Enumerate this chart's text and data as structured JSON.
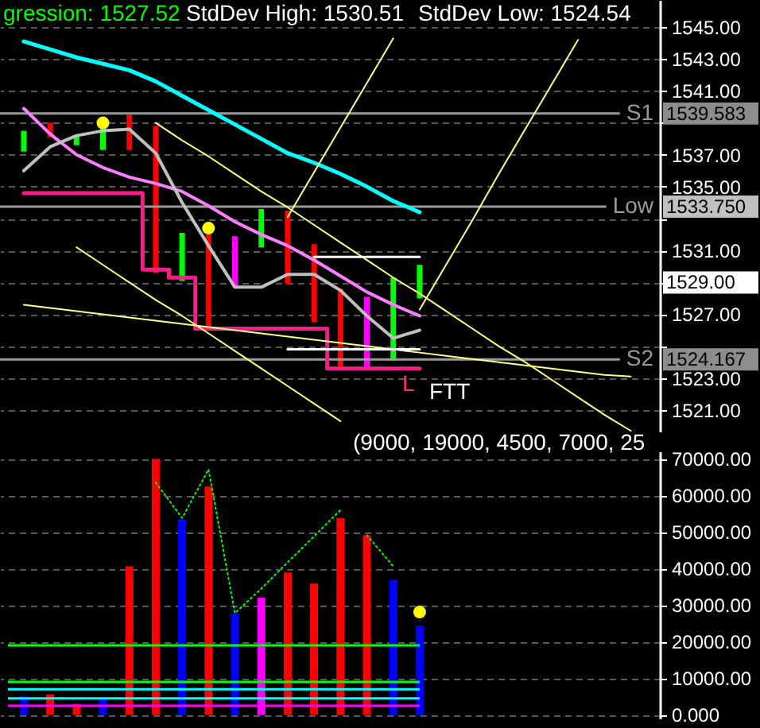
{
  "chart_data": [
    {
      "type": "bar",
      "grid": "y",
      "tick_labels": "y",
      "categories": [
        null,
        null,
        null,
        null,
        null,
        null,
        null,
        null,
        null,
        null,
        null,
        null,
        null,
        null,
        null,
        null,
        null,
        null,
        null,
        null,
        null,
        null,
        null,
        null
      ],
      "ylim": [
        1519.6,
        1546.7
      ],
      "yticks": [
        {
          "value": 1521,
          "label": "1521.00"
        },
        {
          "value": 1523,
          "label": "1523.00"
        },
        {
          "value": 1525,
          "label": null
        },
        {
          "value": 1527,
          "label": "1527.00"
        },
        {
          "value": 1529,
          "label": null
        },
        {
          "value": 1531,
          "label": "1531.00"
        },
        {
          "value": 1533,
          "label": null
        },
        {
          "value": 1535,
          "label": "1535.00"
        },
        {
          "value": 1537,
          "label": "1537.00"
        },
        {
          "value": 1539,
          "label": null
        },
        {
          "value": 1541,
          "label": "1541.00"
        },
        {
          "value": 1543,
          "label": "1543.00"
        },
        {
          "value": 1545,
          "label": "1545.00"
        }
      ],
      "series": [
        {
          "colors": [
            "#00ff00",
            "#ff0000",
            "#00ff00",
            "#00ff00",
            "#ff0000",
            "#ff0000",
            "#00ff00",
            "#ff0000",
            "#ff00ff",
            "#00ff00",
            "#ff0000",
            "#ff0000",
            "#ff0000",
            "#ff00ff",
            "#00ff00",
            "#00ff00",
            null,
            null,
            null,
            null,
            null,
            null,
            null,
            null
          ],
          "base": [
            1537.2,
            1538.1,
            1537.6,
            1537.3,
            1537.3,
            1529.6,
            1529.1,
            1526.0,
            1528.7,
            1531.2,
            1528.9,
            1526.5,
            1523.5,
            1523.5,
            1524.1,
            1528.0,
            null,
            null,
            null,
            null,
            null,
            null,
            null,
            null
          ],
          "values": [
            1.3,
            0.9,
            0.6,
            1.4,
            2.2,
            9.2,
            3.0,
            6.0,
            3.2,
            2.4,
            4.6,
            4.9,
            5.1,
            4.6,
            5.2,
            2.1,
            null,
            null,
            null,
            null,
            null,
            null,
            null,
            null
          ]
        },
        {
          "type": "line",
          "color": "#00ffff",
          "values": [
            1544.1,
            1543.6,
            1543.1,
            1542.7,
            1542.3,
            1541.6,
            1540.7,
            1539.8,
            1538.9,
            1538.0,
            1537.1,
            1536.5,
            1535.8,
            1535.0,
            1534.1,
            1533.4,
            null,
            null,
            null,
            null,
            null,
            null,
            null,
            null
          ]
        },
        {
          "type": "line",
          "color": "#ff80ff",
          "values": [
            1539.9,
            1538.3,
            1537.0,
            1536.2,
            1535.6,
            1535.2,
            1534.7,
            1533.8,
            1532.8,
            1532.0,
            1531.3,
            1530.4,
            1529.4,
            1528.4,
            1527.6,
            1526.9,
            null,
            null,
            null,
            null,
            null,
            null,
            null,
            null
          ]
        },
        {
          "type": "line",
          "color": "#c0c0c0",
          "values": [
            1536.0,
            1537.5,
            1538.2,
            1538.5,
            1538.6,
            1537.1,
            1534.0,
            1531.3,
            1528.7,
            1528.7,
            1529.5,
            1529.5,
            1528.5,
            1526.9,
            1525.5,
            1526.0,
            null,
            null,
            null,
            null,
            null,
            null,
            null,
            null
          ]
        },
        {
          "type": "step",
          "color": "#ff1a8c",
          "values": [
            1534.6,
            1534.6,
            1534.6,
            1534.6,
            1534.6,
            1529.8,
            1529.3,
            1526.1,
            1526.1,
            1526.1,
            1526.1,
            1526.1,
            1523.6,
            1523.6,
            1523.6,
            1523.6,
            null,
            null,
            null,
            null,
            null,
            null,
            null,
            null
          ]
        },
        {
          "type": "line",
          "color": "#ffff80",
          "values": [
            null,
            null,
            null,
            null,
            null,
            1539.0,
            1537.9,
            1536.9,
            1535.8,
            1534.7,
            1533.7,
            1532.6,
            1531.5,
            1530.4,
            1529.3,
            1528.3,
            1527.2,
            1526.1,
            1525.0,
            1524.0,
            1522.9,
            1521.8,
            1520.7,
            1519.7
          ]
        },
        {
          "type": "line",
          "color": "#ffff80",
          "values": [
            null,
            null,
            1531.2,
            1530.1,
            1529.0,
            1527.9,
            1526.9,
            1525.8,
            1524.7,
            1523.6,
            1522.5,
            1521.4,
            1520.3,
            null,
            null,
            null,
            null,
            null,
            null,
            null,
            null,
            null,
            null,
            null
          ]
        },
        {
          "type": "line",
          "color": "#ffff80",
          "values": [
            1527.6,
            1527.4,
            1527.2,
            1527.0,
            1526.8,
            1526.6,
            1526.4,
            1526.2,
            1526.0,
            1525.8,
            1525.6,
            1525.4,
            1525.2,
            1525.0,
            1524.8,
            1524.6,
            1524.4,
            1524.2,
            1524.0,
            1523.8,
            1523.6,
            1523.4,
            1523.2,
            1523.1
          ]
        },
        {
          "type": "line",
          "color": "#ffff80",
          "values": [
            null,
            null,
            null,
            null,
            null,
            null,
            null,
            null,
            null,
            null,
            1533.1,
            1535.9,
            1538.7,
            1541.5,
            1544.3,
            null,
            null,
            null,
            null,
            null,
            null,
            null,
            null,
            null
          ]
        },
        {
          "type": "line",
          "color": "#ffff80",
          "values": [
            null,
            null,
            null,
            null,
            null,
            null,
            null,
            null,
            null,
            null,
            null,
            null,
            null,
            null,
            null,
            1527.3,
            1530.1,
            1532.9,
            1535.8,
            1538.6,
            1541.4,
            1544.2,
            null,
            null
          ]
        },
        {
          "type": "line",
          "color": "#ffffff",
          "values": [
            null,
            null,
            null,
            null,
            null,
            null,
            null,
            null,
            null,
            null,
            null,
            1530.6,
            1530.6,
            1530.6,
            1530.6,
            1530.6,
            null,
            null,
            null,
            null,
            null,
            null,
            null,
            null
          ]
        },
        {
          "type": "line",
          "color": "#ffffff",
          "values": [
            null,
            null,
            null,
            null,
            null,
            null,
            null,
            null,
            null,
            null,
            1524.8,
            1524.8,
            1524.8,
            1524.8,
            1524.8,
            1524.8,
            null,
            null,
            null,
            null,
            null,
            null,
            null,
            null
          ]
        },
        {
          "type": "scatter",
          "color": "#ffff00",
          "values": [
            null,
            null,
            null,
            1539.0,
            null,
            null,
            null,
            1532.4,
            null,
            null,
            null,
            null,
            null,
            null,
            null,
            null,
            null,
            null,
            null,
            null,
            null,
            null,
            null,
            null
          ]
        }
      ],
      "ref_lines": [
        {
          "axis": "y",
          "value": 1539.583,
          "label": "S1",
          "color": "#9a9a9a"
        },
        {
          "axis": "y",
          "value": 1533.75,
          "label": "Low",
          "color": "#9a9a9a"
        },
        {
          "axis": "y",
          "value": 1524.167,
          "label": "S2",
          "color": "#9a9a9a"
        }
      ],
      "annotations": [
        "gression: 1527.52",
        "StdDev High: 1530.51",
        "StdDev Low: 1524.54",
        "L",
        "FTT",
        "1539.583",
        "1533.750",
        "1529.00",
        "1524.167"
      ]
    },
    {
      "type": "bar",
      "grid": "y",
      "tick_labels": "y",
      "categories": [
        null,
        null,
        null,
        null,
        null,
        null,
        null,
        null,
        null,
        null,
        null,
        null,
        null,
        null,
        null,
        null,
        null,
        null,
        null,
        null,
        null,
        null,
        null,
        null
      ],
      "ylim": [
        -1000,
        72000
      ],
      "yticks": [
        {
          "value": 0,
          "label": "0.000"
        },
        {
          "value": 10000,
          "label": "10000.00"
        },
        {
          "value": 20000,
          "label": "20000.00"
        },
        {
          "value": 30000,
          "label": "30000.00"
        },
        {
          "value": 40000,
          "label": "40000.00"
        },
        {
          "value": 50000,
          "label": "50000.00"
        },
        {
          "value": 60000,
          "label": "60000.00"
        },
        {
          "value": 70000,
          "label": "70000.00"
        }
      ],
      "series": [
        {
          "colors": [
            "#0000ff",
            "#ff0000",
            "#ff0000",
            "#0000ff",
            "#ff0000",
            "#ff0000",
            "#0000ff",
            "#ff0000",
            "#0000ff",
            "#ff00ff",
            "#ff0000",
            "#ff0000",
            "#ff0000",
            "#ff0000",
            "#0000ff",
            "#0000ff",
            null,
            null,
            null,
            null,
            null,
            null,
            null,
            null
          ],
          "values": [
            5100,
            5600,
            3000,
            4700,
            40600,
            70000,
            53400,
            62400,
            27800,
            32000,
            38900,
            35900,
            53800,
            49100,
            36800,
            24400,
            null,
            null,
            null,
            null,
            null,
            null,
            null,
            null
          ]
        },
        {
          "type": "line",
          "color": "#00ff00",
          "line_style": "dotted",
          "values": [
            null,
            null,
            null,
            null,
            null,
            63500,
            53800,
            67100,
            27800,
            34500,
            41700,
            48800,
            56000,
            null,
            null,
            null,
            null,
            null,
            null,
            null,
            null,
            null,
            null,
            null
          ]
        },
        {
          "type": "line",
          "color": "#00ff00",
          "line_style": "dotted",
          "values": [
            null,
            null,
            null,
            null,
            null,
            null,
            null,
            null,
            null,
            null,
            null,
            null,
            null,
            49100,
            40600,
            null,
            null,
            null,
            null,
            null,
            null,
            null,
            null,
            null
          ]
        },
        {
          "type": "scatter",
          "color": "#ffff00",
          "values": [
            null,
            null,
            null,
            null,
            null,
            null,
            null,
            null,
            null,
            null,
            null,
            null,
            null,
            null,
            null,
            28100,
            null,
            null,
            null,
            null,
            null,
            null,
            null,
            null
          ]
        }
      ],
      "ref_lines": [
        {
          "axis": "y",
          "value": 19000,
          "color": "#00ff00"
        },
        {
          "axis": "y",
          "value": 9000,
          "color": "#00ff00"
        },
        {
          "axis": "y",
          "value": 7000,
          "color": "#00ffff"
        },
        {
          "axis": "y",
          "value": 4500,
          "color": "#00ffff"
        },
        {
          "axis": "y",
          "value": 2500,
          "color": "#ff00ff"
        }
      ],
      "annotations": [
        "(9000, 19000, 4500, 7000, 25"
      ]
    }
  ]
}
